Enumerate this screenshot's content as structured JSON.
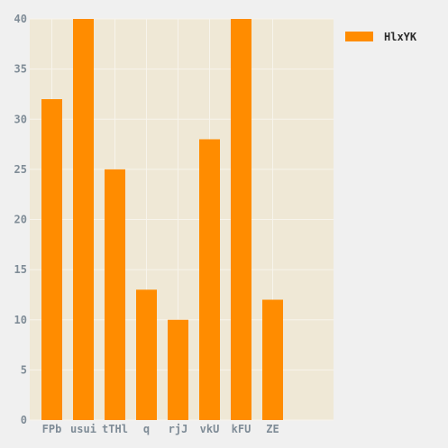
{
  "chart_data": {
    "type": "bar",
    "title": "",
    "xlabel": "",
    "ylabel": "",
    "categories": [
      "FPb",
      "usui",
      "tTHl",
      "q",
      "rjJ",
      "vkU",
      "kFU",
      "ZE"
    ],
    "series": [
      {
        "name": "HlxYK",
        "values": [
          32,
          40,
          25,
          13,
          10,
          28,
          40,
          12
        ],
        "color": "#ff8c00"
      }
    ],
    "ylim": [
      0,
      40
    ],
    "yticks": [
      0,
      5,
      10,
      15,
      20,
      25,
      30,
      35,
      40
    ],
    "grid": true,
    "legend_position": "top-right",
    "colors": {
      "page_background": "#f0f0f0",
      "plot_background": "#efe8d6",
      "gridline": "#f7f4ec",
      "tick_label": "#7f8c97",
      "legend_text": "#2b2b2b"
    }
  }
}
